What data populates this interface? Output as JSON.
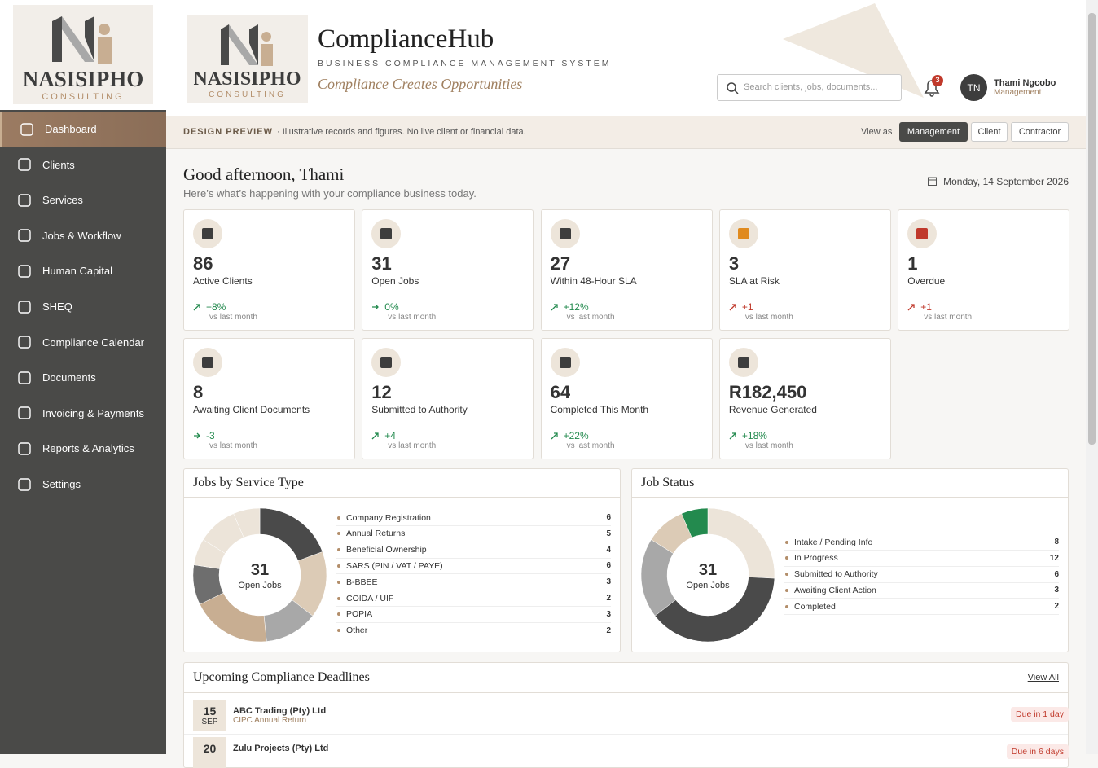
{
  "sidebar": {
    "logo": {
      "name": "NASISIPHO",
      "sub": "CONSULTING"
    },
    "nav": [
      "Dashboard",
      "Clients",
      "Services",
      "Jobs & Workflow",
      "Human Capital",
      "SHEQ",
      "Compliance Calendar",
      "Documents",
      "Invoicing & Payments",
      "Reports & Analytics",
      "Settings"
    ]
  },
  "header": {
    "logo": {
      "name": "NASISIPHO",
      "sub": "CONSULTING"
    },
    "title": "ComplianceHub",
    "subtitle": "BUSINESS COMPLIANCE MANAGEMENT SYSTEM",
    "tagline": "Compliance Creates Opportunities",
    "search_placeholder": "Search clients, jobs, documents...",
    "notifications": 3,
    "user": {
      "initials": "TN",
      "name": "Thami Ngcobo",
      "role": "Management"
    }
  },
  "banner": {
    "label": "DESIGN PREVIEW",
    "text": "· Illustrative records and figures. No live client or financial data.",
    "view_as": "View as",
    "roles": [
      "Management",
      "Client",
      "Contractor"
    ]
  },
  "greeting": {
    "title": "Good afternoon, Thami",
    "text": "Here’s what’s happening with your compliance business today.",
    "date": "Monday, 14 September 2026"
  },
  "kpis": [
    {
      "value": 86,
      "label": "Active Clients",
      "change": "+8%",
      "note": "vs last month",
      "trend": "up"
    },
    {
      "value": 31,
      "label": "Open Jobs",
      "change": "0%",
      "note": "vs last month",
      "trend": "flat"
    },
    {
      "value": 27,
      "label": "Within 48-Hour SLA",
      "change": "+12%",
      "note": "vs last month",
      "trend": "up"
    },
    {
      "value": 3,
      "label": "SLA at Risk",
      "change": "+1",
      "note": "vs last month",
      "trend": "bad"
    },
    {
      "value": 1,
      "label": "Overdue",
      "change": "+1",
      "note": "vs last month",
      "trend": "bad"
    },
    {
      "value": 8,
      "label": "Awaiting Client Documents",
      "change": "-3",
      "note": "vs last month",
      "trend": "flat"
    },
    {
      "value": 12,
      "label": "Submitted to Authority",
      "change": "+4",
      "note": "vs last month",
      "trend": "up"
    },
    {
      "value": 64,
      "label": "Completed This Month",
      "change": "+22%",
      "note": "vs last month",
      "trend": "up"
    },
    {
      "value": "R182,450",
      "label": "Revenue Generated",
      "change": "+18%",
      "note": "vs last month",
      "trend": "up"
    }
  ],
  "service_chart": {
    "type": "donut",
    "title": "Jobs by Service Type",
    "center_value": 31,
    "center_label": "Open Jobs",
    "items": [
      {
        "name": "Company Registration",
        "value": 6,
        "color": "#4a4a4a"
      },
      {
        "name": "Annual Returns",
        "value": 5,
        "color": "#dccbb6"
      },
      {
        "name": "Beneficial Ownership",
        "value": 4,
        "color": "#a8a8a8"
      },
      {
        "name": "SARS (PIN / VAT / PAYE)",
        "value": 6,
        "color": "#c8ae92"
      },
      {
        "name": "B-BBEE",
        "value": 3,
        "color": "#6e6e6e"
      },
      {
        "name": "COIDA / UIF",
        "value": 2,
        "color": "#ece4d9"
      },
      {
        "name": "POPIA",
        "value": 3,
        "color": "#ece4d9"
      },
      {
        "name": "Other",
        "value": 2,
        "color": "#ece4d9"
      }
    ]
  },
  "status_chart": {
    "type": "donut",
    "title": "Job Status",
    "center_value": 31,
    "center_label": "Open Jobs",
    "items": [
      {
        "name": "Intake / Pending Info",
        "value": 8,
        "color": "#ece4d9"
      },
      {
        "name": "In Progress",
        "value": 12,
        "color": "#4a4a4a"
      },
      {
        "name": "Submitted to Authority",
        "value": 6,
        "color": "#a8a8a8"
      },
      {
        "name": "Awaiting Client Action",
        "value": 3,
        "color": "#dccbb6"
      },
      {
        "name": "Completed",
        "value": 2,
        "color": "#238a4e"
      }
    ]
  },
  "deadlines": {
    "title": "Upcoming Compliance Deadlines",
    "link": "View All",
    "items": [
      {
        "day": 15,
        "month": "SEP",
        "client": "ABC Trading (Pty) Ltd",
        "task": "CIPC Annual Return",
        "due": "Due in 1 day"
      },
      {
        "day": 20,
        "client": "Zulu Projects (Pty) Ltd",
        "due": "Due in 6 days"
      }
    ]
  }
}
